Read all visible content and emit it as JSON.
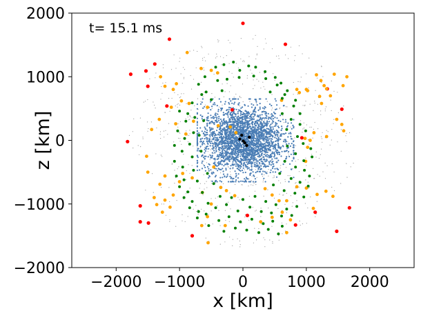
{
  "chart_data": {
    "type": "scatter",
    "annotation": "t= 15.1 ms",
    "xlabel": "x [km]",
    "ylabel": "z [km]",
    "xlim": [
      -2700,
      2700
    ],
    "ylim": [
      -2000,
      2000
    ],
    "x_ticks": [
      -2000,
      -1000,
      0,
      1000,
      2000
    ],
    "x_tick_labels": [
      "−2000",
      "−1000",
      "0",
      "1000",
      "2000"
    ],
    "y_ticks": [
      -2000,
      -1000,
      0,
      1000,
      2000
    ],
    "y_tick_labels": [
      "−2000",
      "−1000",
      "0",
      "1000",
      "2000"
    ],
    "grid": false,
    "legend": "none",
    "colors": {
      "background_points": "#999999",
      "core": "#4a7db5",
      "inner": "#008000",
      "middle": "#ffa500",
      "outer": "#ff0000",
      "center": "#000000"
    },
    "series": [
      {
        "color": "#ff0000",
        "x": [
          0,
          -1160,
          670,
          -1770,
          -1390,
          -1530,
          -1200,
          -1500,
          1560,
          -1820,
          -1620,
          -1620,
          -1490,
          1330,
          1680,
          70,
          -800,
          830,
          1140,
          1480,
          930,
          -170
        ],
        "y": [
          1840,
          1590,
          1510,
          1040,
          1200,
          1090,
          540,
          850,
          490,
          -20,
          -1030,
          -1280,
          -1300,
          810,
          -1060,
          -1180,
          -1500,
          -1330,
          -1130,
          -1430,
          40,
          480
        ]
      },
      {
        "color": "#ffa500",
        "x": [
          -880,
          -1300,
          -660,
          -500,
          -400,
          -1050,
          -1230,
          -1100,
          -1440,
          -1500,
          -650,
          -550,
          1440,
          1160,
          1230,
          1280,
          1320,
          1640,
          1580,
          1000,
          890,
          -970,
          -850,
          -1130,
          -1320,
          -1060,
          -900,
          -780,
          -390,
          -200,
          -110,
          850,
          1020,
          1210,
          1380,
          1240,
          1590,
          1320,
          1560,
          1120,
          1480,
          1060,
          980,
          -1000,
          -800,
          -950,
          -1310,
          -1230,
          -1520,
          -1270,
          -1400,
          -1100,
          -1230,
          -500,
          1110,
          1310,
          1420,
          1170,
          1000,
          850,
          -1360,
          -1150,
          -640,
          -350,
          -260,
          -130,
          350,
          460,
          570,
          690,
          620,
          750,
          -560,
          -280,
          280,
          460,
          690,
          -460,
          990,
          1020,
          610,
          -560
        ],
        "y": [
          1380,
          1000,
          1130,
          1100,
          1060,
          890,
          850,
          800,
          170,
          -500,
          -1340,
          -1610,
          1040,
          1030,
          940,
          860,
          810,
          1000,
          860,
          800,
          750,
          620,
          580,
          520,
          330,
          260,
          100,
          300,
          230,
          210,
          120,
          800,
          780,
          690,
          700,
          580,
          150,
          60,
          250,
          120,
          330,
          0,
          30,
          -650,
          -590,
          -520,
          -690,
          -560,
          -250,
          -1130,
          -900,
          -860,
          -940,
          -1000,
          -1070,
          -800,
          -880,
          -850,
          -750,
          -730,
          -1010,
          -1050,
          -820,
          -740,
          -790,
          -870,
          -760,
          -860,
          -950,
          -950,
          -1130,
          -1250,
          -1200,
          -1340,
          -1280,
          -1210,
          -1450,
          -420,
          -330,
          -110,
          630,
          520
        ]
      },
      {
        "color": "#008000",
        "x": [
          -700,
          -650,
          -600,
          -430,
          -300,
          -150,
          -50,
          90,
          200,
          350,
          510,
          600,
          700,
          -800,
          -870,
          -580,
          -400,
          -250,
          -60,
          170,
          360,
          540,
          660,
          830,
          -1000,
          -900,
          -760,
          -500,
          -330,
          430,
          620,
          800,
          900,
          -1030,
          -920,
          -780,
          -620,
          620,
          760,
          900,
          990,
          -1080,
          -960,
          -840,
          -690,
          690,
          860,
          950,
          1070,
          -1080,
          -950,
          -800,
          -660,
          700,
          830,
          960,
          1090,
          -1050,
          -930,
          -780,
          660,
          830,
          970,
          1050,
          -1000,
          -870,
          -720,
          -560,
          580,
          760,
          900,
          1030,
          -930,
          -800,
          -640,
          -460,
          480,
          650,
          820,
          960,
          -840,
          -700,
          -550,
          -360,
          -180,
          0,
          190,
          360,
          520,
          690,
          850,
          -720,
          -580,
          -430,
          -260,
          -80,
          110,
          290,
          450,
          610,
          770,
          -540,
          -380,
          -220,
          -40,
          140,
          320,
          470,
          620,
          -300,
          -120,
          60,
          250,
          400,
          560
        ],
        "y": [
          880,
          720,
          1000,
          1150,
          1190,
          1230,
          1100,
          1170,
          1150,
          1080,
          990,
          900,
          780,
          590,
          420,
          760,
          940,
          960,
          990,
          1010,
          970,
          870,
          720,
          630,
          460,
          300,
          360,
          640,
          780,
          760,
          660,
          540,
          420,
          150,
          30,
          120,
          310,
          420,
          330,
          250,
          150,
          -80,
          -170,
          -60,
          80,
          170,
          60,
          -50,
          -130,
          -330,
          -420,
          -260,
          -170,
          -90,
          -210,
          -320,
          -260,
          -560,
          -620,
          -470,
          -330,
          -420,
          -470,
          -560,
          -730,
          -810,
          -640,
          -520,
          -520,
          -600,
          -660,
          -720,
          -900,
          -960,
          -820,
          -680,
          -700,
          -790,
          -830,
          -890,
          -1060,
          -1120,
          -990,
          -880,
          -900,
          -930,
          -880,
          -960,
          -1010,
          -1080,
          -1040,
          -1220,
          -1160,
          -1060,
          -1010,
          -1110,
          -1050,
          -1120,
          -1140,
          -1190,
          -1180,
          -1340,
          -1260,
          -1200,
          -1280,
          -1240,
          -1310,
          -1270,
          -1350,
          -1430,
          -1380,
          -1410,
          -1450,
          -1400,
          -1470
        ]
      },
      {
        "color": "#000000",
        "x": [
          -50,
          30,
          100,
          -20,
          60,
          5
        ],
        "y": [
          20,
          -40,
          50,
          80,
          -80,
          -10
        ]
      }
    ]
  }
}
